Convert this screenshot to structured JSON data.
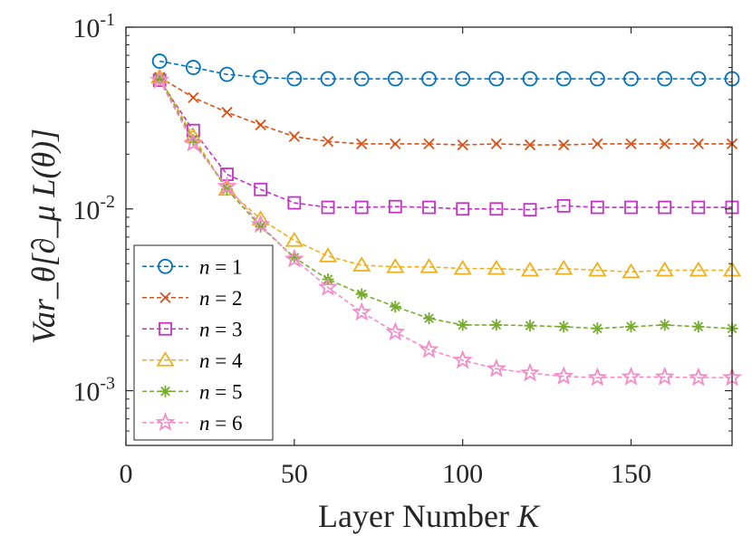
{
  "chart_data": {
    "type": "line",
    "title": "",
    "xlabel": "Layer Number",
    "xlabel_var": "K",
    "ylabel": "Var_θ[∂_μ L(θ)]",
    "xlim": [
      0,
      180
    ],
    "ylim": [
      0.0005,
      0.1
    ],
    "yscale": "log",
    "grid": false,
    "legend_position": "bottom-left",
    "x_ticks": [
      0,
      50,
      100,
      150
    ],
    "x_tick_labels": [
      "0",
      "50",
      "100",
      "150"
    ],
    "y_ticks": [
      0.001,
      0.01,
      0.1
    ],
    "y_tick_labels": [
      {
        "base": "10",
        "exp": "-3"
      },
      {
        "base": "10",
        "exp": "-2"
      },
      {
        "base": "10",
        "exp": "-1"
      }
    ],
    "x": [
      10,
      20,
      30,
      40,
      50,
      60,
      70,
      80,
      90,
      100,
      110,
      120,
      130,
      140,
      150,
      160,
      170,
      180
    ],
    "series": [
      {
        "name": "n = 1",
        "label_var": "n",
        "label_value": "1",
        "color": "#0072BD",
        "marker": "circle",
        "values": [
          0.065,
          0.06,
          0.055,
          0.053,
          0.052,
          0.052,
          0.052,
          0.052,
          0.052,
          0.052,
          0.052,
          0.052,
          0.052,
          0.052,
          0.052,
          0.052,
          0.052,
          0.052
        ]
      },
      {
        "name": "n = 2",
        "label_var": "n",
        "label_value": "2",
        "color": "#D95319",
        "marker": "x",
        "values": [
          0.053,
          0.041,
          0.034,
          0.029,
          0.025,
          0.0235,
          0.0228,
          0.0228,
          0.0228,
          0.0225,
          0.0228,
          0.0225,
          0.0225,
          0.0228,
          0.0228,
          0.0228,
          0.0228,
          0.0228
        ]
      },
      {
        "name": "n = 3",
        "label_var": "n",
        "label_value": "3",
        "color": "#C133C5",
        "marker": "square",
        "values": [
          0.051,
          0.027,
          0.0155,
          0.0128,
          0.0108,
          0.0102,
          0.0102,
          0.0103,
          0.0102,
          0.01,
          0.01,
          0.0099,
          0.0104,
          0.0102,
          0.0102,
          0.0102,
          0.0102,
          0.0102
        ]
      },
      {
        "name": "n = 4",
        "label_var": "n",
        "label_value": "4",
        "color": "#EDB120",
        "marker": "triangle",
        "values": [
          0.053,
          0.025,
          0.0128,
          0.0088,
          0.0067,
          0.0055,
          0.0049,
          0.0048,
          0.0048,
          0.0047,
          0.0047,
          0.0046,
          0.0047,
          0.0046,
          0.0045,
          0.0046,
          0.0046,
          0.0046
        ]
      },
      {
        "name": "n = 5",
        "label_var": "n",
        "label_value": "5",
        "color": "#77AC30",
        "marker": "asterisk",
        "values": [
          0.052,
          0.024,
          0.0128,
          0.008,
          0.0054,
          0.0041,
          0.0034,
          0.0029,
          0.0025,
          0.0023,
          0.0023,
          0.00228,
          0.00225,
          0.0022,
          0.00225,
          0.0023,
          0.00225,
          0.0022
        ]
      },
      {
        "name": "n = 6",
        "label_var": "n",
        "label_value": "6",
        "color": "#F58BC8",
        "marker": "star",
        "values": [
          0.051,
          0.023,
          0.0133,
          0.0082,
          0.0053,
          0.0037,
          0.0027,
          0.0021,
          0.00168,
          0.00147,
          0.00132,
          0.00125,
          0.0012,
          0.00118,
          0.00119,
          0.00119,
          0.00118,
          0.00118
        ]
      }
    ]
  }
}
